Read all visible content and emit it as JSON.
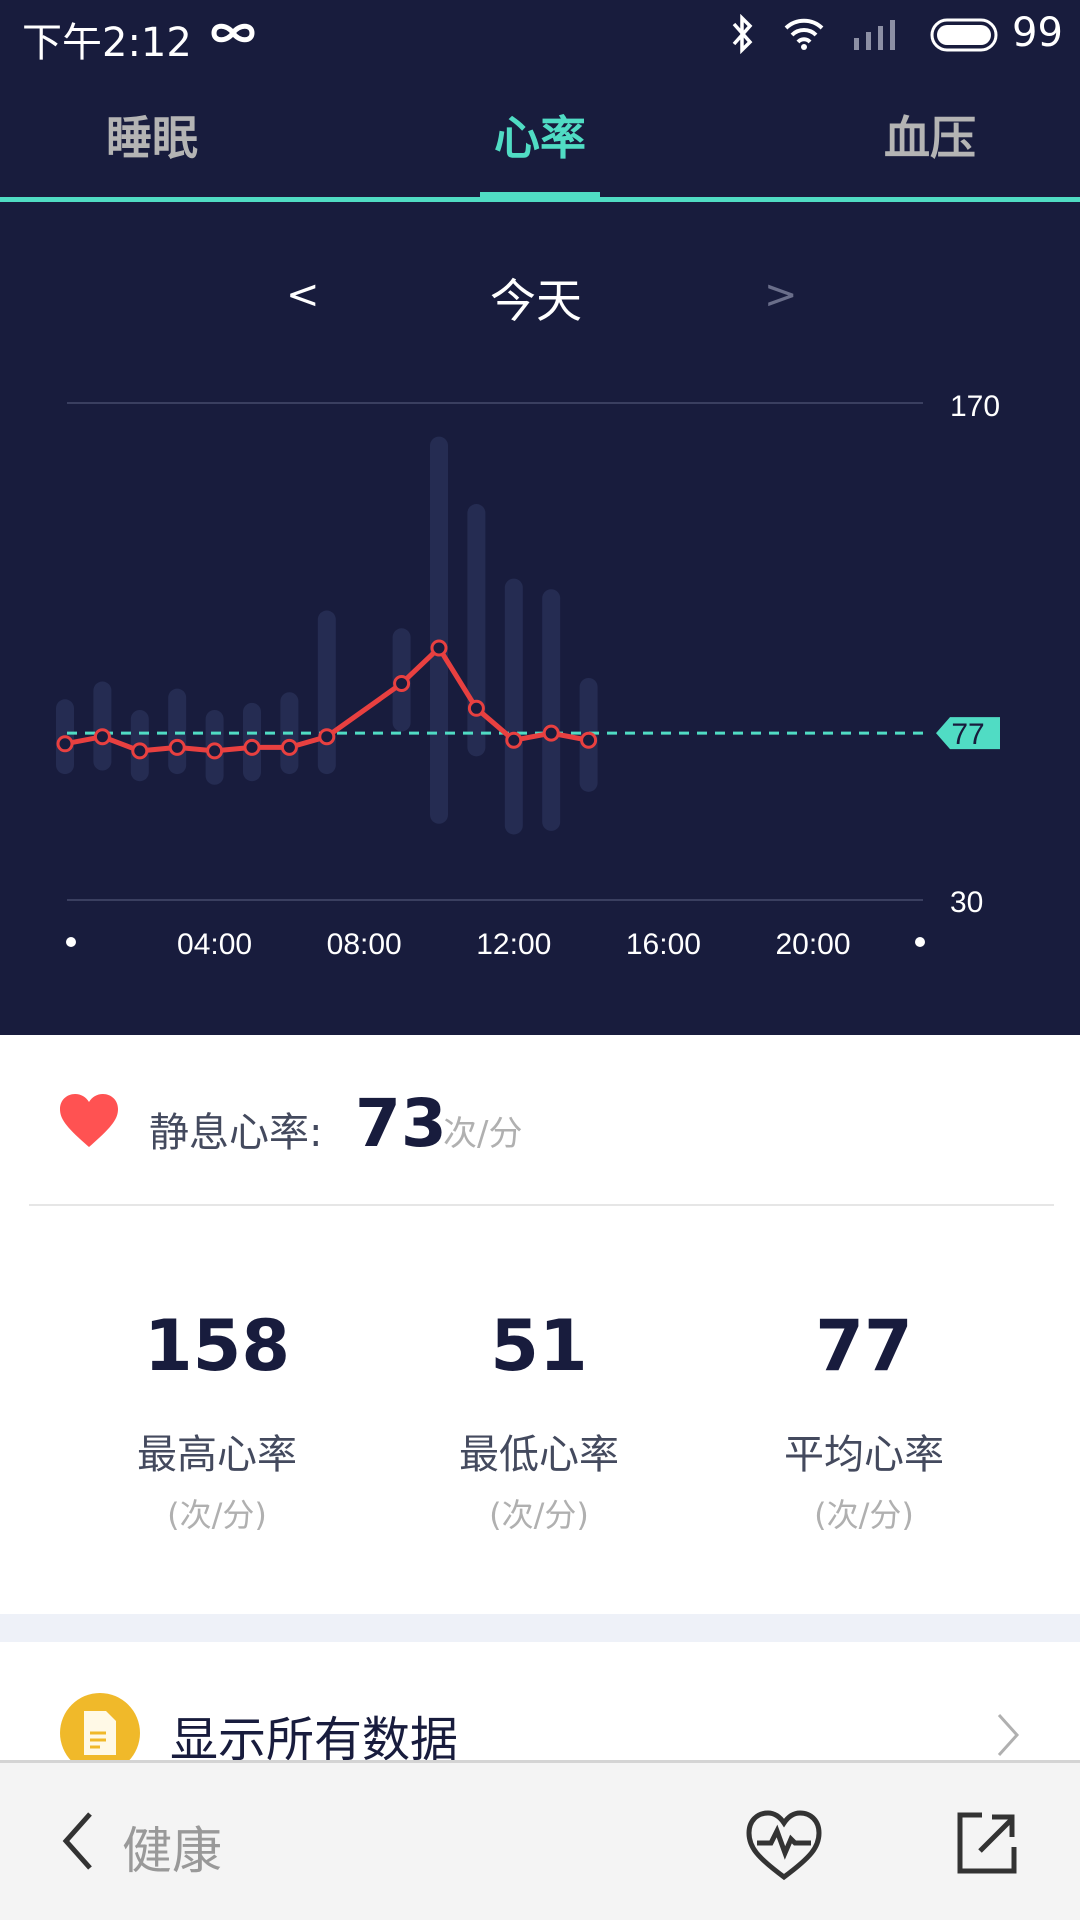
{
  "status_bar": {
    "time": "下午2:12",
    "battery": "99"
  },
  "tabs": [
    {
      "label": "睡眠"
    },
    {
      "label": "心率",
      "active": true
    },
    {
      "label": "血压"
    }
  ],
  "date_nav": {
    "prev": "<",
    "label": "今天",
    "next": ">"
  },
  "colors": {
    "background": "#181c3d",
    "accent": "#50dcc4",
    "line": "#e84040",
    "range": "#252c52",
    "heart": "#ff5252",
    "doc_icon": "#f0b92a"
  },
  "chart_data": {
    "type": "line",
    "y_ticks": [
      "170",
      "30"
    ],
    "ylim": [
      30,
      170
    ],
    "x_ticks": [
      "04:00",
      "08:00",
      "12:00",
      "16:00",
      "20:00"
    ],
    "xlim_hours": [
      0,
      24
    ],
    "average": {
      "value": 77,
      "label": "77"
    },
    "series": [
      {
        "hours": [
          0,
          1,
          2,
          3,
          4,
          5,
          6,
          7,
          9,
          10,
          11,
          12,
          13,
          14
        ],
        "values": [
          74,
          76,
          72,
          73,
          72,
          73,
          73,
          76,
          91,
          101,
          84,
          75,
          77,
          75
        ]
      }
    ],
    "ranges": [
      {
        "hour": 0,
        "min": 68,
        "max": 84
      },
      {
        "hour": 1,
        "min": 69,
        "max": 89
      },
      {
        "hour": 2,
        "min": 66,
        "max": 81
      },
      {
        "hour": 3,
        "min": 68,
        "max": 87
      },
      {
        "hour": 4,
        "min": 65,
        "max": 81
      },
      {
        "hour": 5,
        "min": 66,
        "max": 83
      },
      {
        "hour": 6,
        "min": 68,
        "max": 86
      },
      {
        "hour": 7,
        "min": 68,
        "max": 109
      },
      {
        "hour": 9,
        "min": 80,
        "max": 104
      },
      {
        "hour": 10,
        "min": 54,
        "max": 158
      },
      {
        "hour": 11,
        "min": 73,
        "max": 139
      },
      {
        "hour": 12,
        "min": 51,
        "max": 118
      },
      {
        "hour": 13,
        "min": 52,
        "max": 115
      },
      {
        "hour": 14,
        "min": 63,
        "max": 90
      }
    ]
  },
  "resting": {
    "label": "静息心率:",
    "value": "73",
    "unit": "次/分"
  },
  "stats": [
    {
      "value": "158",
      "label": "最高心率",
      "unit": "(次/分)"
    },
    {
      "value": "51",
      "label": "最低心率",
      "unit": "(次/分)"
    },
    {
      "value": "77",
      "label": "平均心率",
      "unit": "(次/分)"
    }
  ],
  "show_all": {
    "label": "显示所有数据"
  },
  "bottom_bar": {
    "back_label": "健康"
  }
}
